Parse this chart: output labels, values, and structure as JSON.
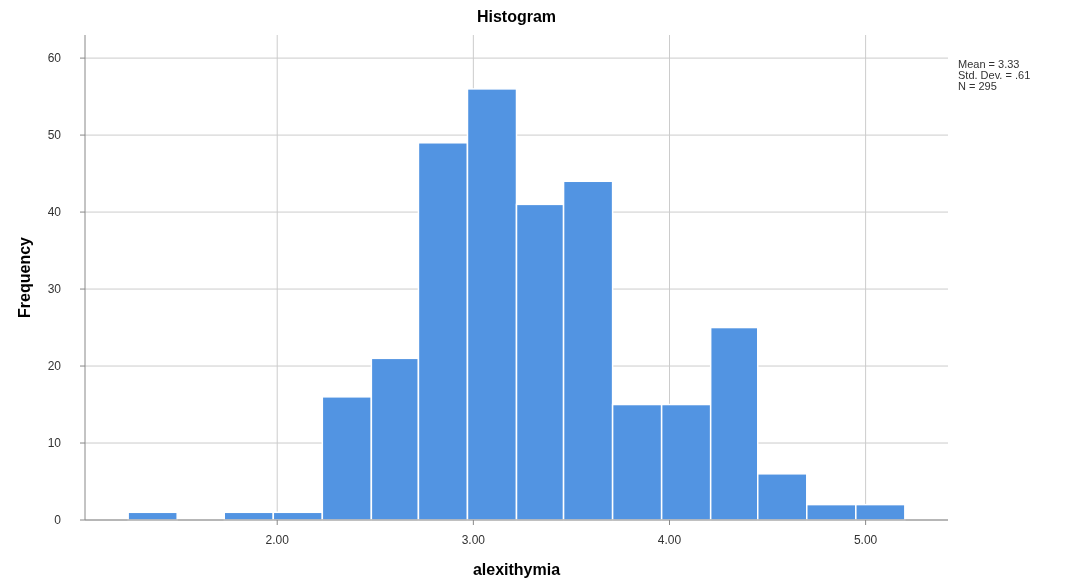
{
  "chart_data": {
    "type": "histogram",
    "title": "Histogram",
    "xlabel": "alexithymia",
    "ylabel": "Frequency",
    "bins": [
      1.24,
      1.49,
      1.73,
      1.98,
      2.23,
      2.48,
      2.72,
      2.97,
      3.22,
      3.46,
      3.71,
      3.96,
      4.21,
      4.45,
      4.7,
      4.95,
      5.2
    ],
    "values": [
      1,
      0,
      1,
      1,
      16,
      21,
      49,
      56,
      41,
      44,
      15,
      15,
      25,
      6,
      2,
      2
    ],
    "color": "#5294e2",
    "xlim": [
      1.02,
      5.42
    ],
    "xticks": [
      {
        "value": 2,
        "label": "2.00"
      },
      {
        "value": 3,
        "label": "3.00"
      },
      {
        "value": 4,
        "label": "4.00"
      },
      {
        "value": 5,
        "label": "5.00"
      }
    ],
    "ylim": [
      0,
      63
    ],
    "yticks": [
      0,
      10,
      20,
      30,
      40,
      50,
      60
    ],
    "grid": true,
    "annotations": [
      "Mean = 3.33",
      "Std. Dev. = .61",
      "N = 295"
    ]
  }
}
